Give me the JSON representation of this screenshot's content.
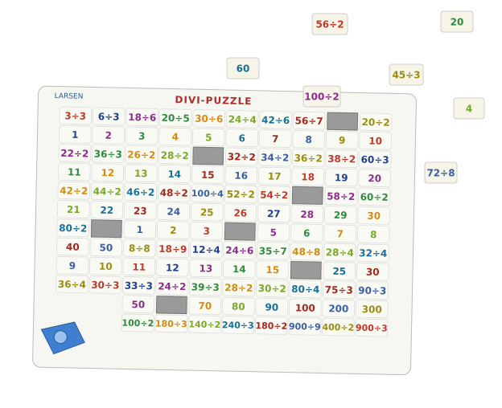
{
  "header": {
    "brand": "LARSEN",
    "title": "DIVI-PUZZLE"
  },
  "board": {
    "rows": [
      [
        "3÷3",
        "6÷3",
        "18÷6",
        "20÷5",
        "30÷6",
        "24÷4",
        "42÷6",
        "56÷7",
        null,
        "20÷2"
      ],
      [
        "1",
        "2",
        "3",
        "4",
        "5",
        "6",
        "7",
        "8",
        "9",
        "10"
      ],
      [
        "22÷2",
        "36÷3",
        "26÷2",
        "28÷2",
        null,
        "32÷2",
        "34÷2",
        "36÷2",
        "38÷2",
        "60÷3"
      ],
      [
        "11",
        "12",
        "13",
        "14",
        "15",
        "16",
        "17",
        "18",
        "19",
        "20"
      ],
      [
        "42÷2",
        "44÷2",
        "46÷2",
        "48÷2",
        "100÷4",
        "52÷2",
        "54÷2",
        null,
        "58÷2",
        "60÷2"
      ],
      [
        "21",
        "22",
        "23",
        "24",
        "25",
        "26",
        "27",
        "28",
        "29",
        "30"
      ],
      [
        "80÷2",
        null,
        "1",
        "2",
        "3",
        null,
        "5",
        "6",
        "7",
        "8"
      ],
      [
        "40",
        "50",
        "8÷8",
        "18÷9",
        "12÷4",
        "24÷6",
        "35÷7",
        "48÷8",
        "28÷4",
        "32÷4"
      ],
      [
        "9",
        "10",
        "11",
        "12",
        "13",
        "14",
        "15",
        null,
        "25",
        "30"
      ],
      [
        "36÷4",
        "30÷3",
        "33÷3",
        "24÷2",
        "39÷3",
        "28÷2",
        "30÷2",
        "80÷4",
        "75÷3",
        "90÷3"
      ],
      [
        "50",
        null,
        "70",
        "80",
        "90",
        "100",
        "200",
        "300"
      ],
      [
        "100÷2",
        "180÷3",
        "140÷2",
        "240÷3",
        "180÷2",
        "900÷9",
        "400÷2",
        "900÷3"
      ]
    ]
  },
  "loose_pieces": [
    "56÷2",
    "20",
    "60",
    "45÷3",
    "100÷2",
    "4",
    "72÷8"
  ]
}
